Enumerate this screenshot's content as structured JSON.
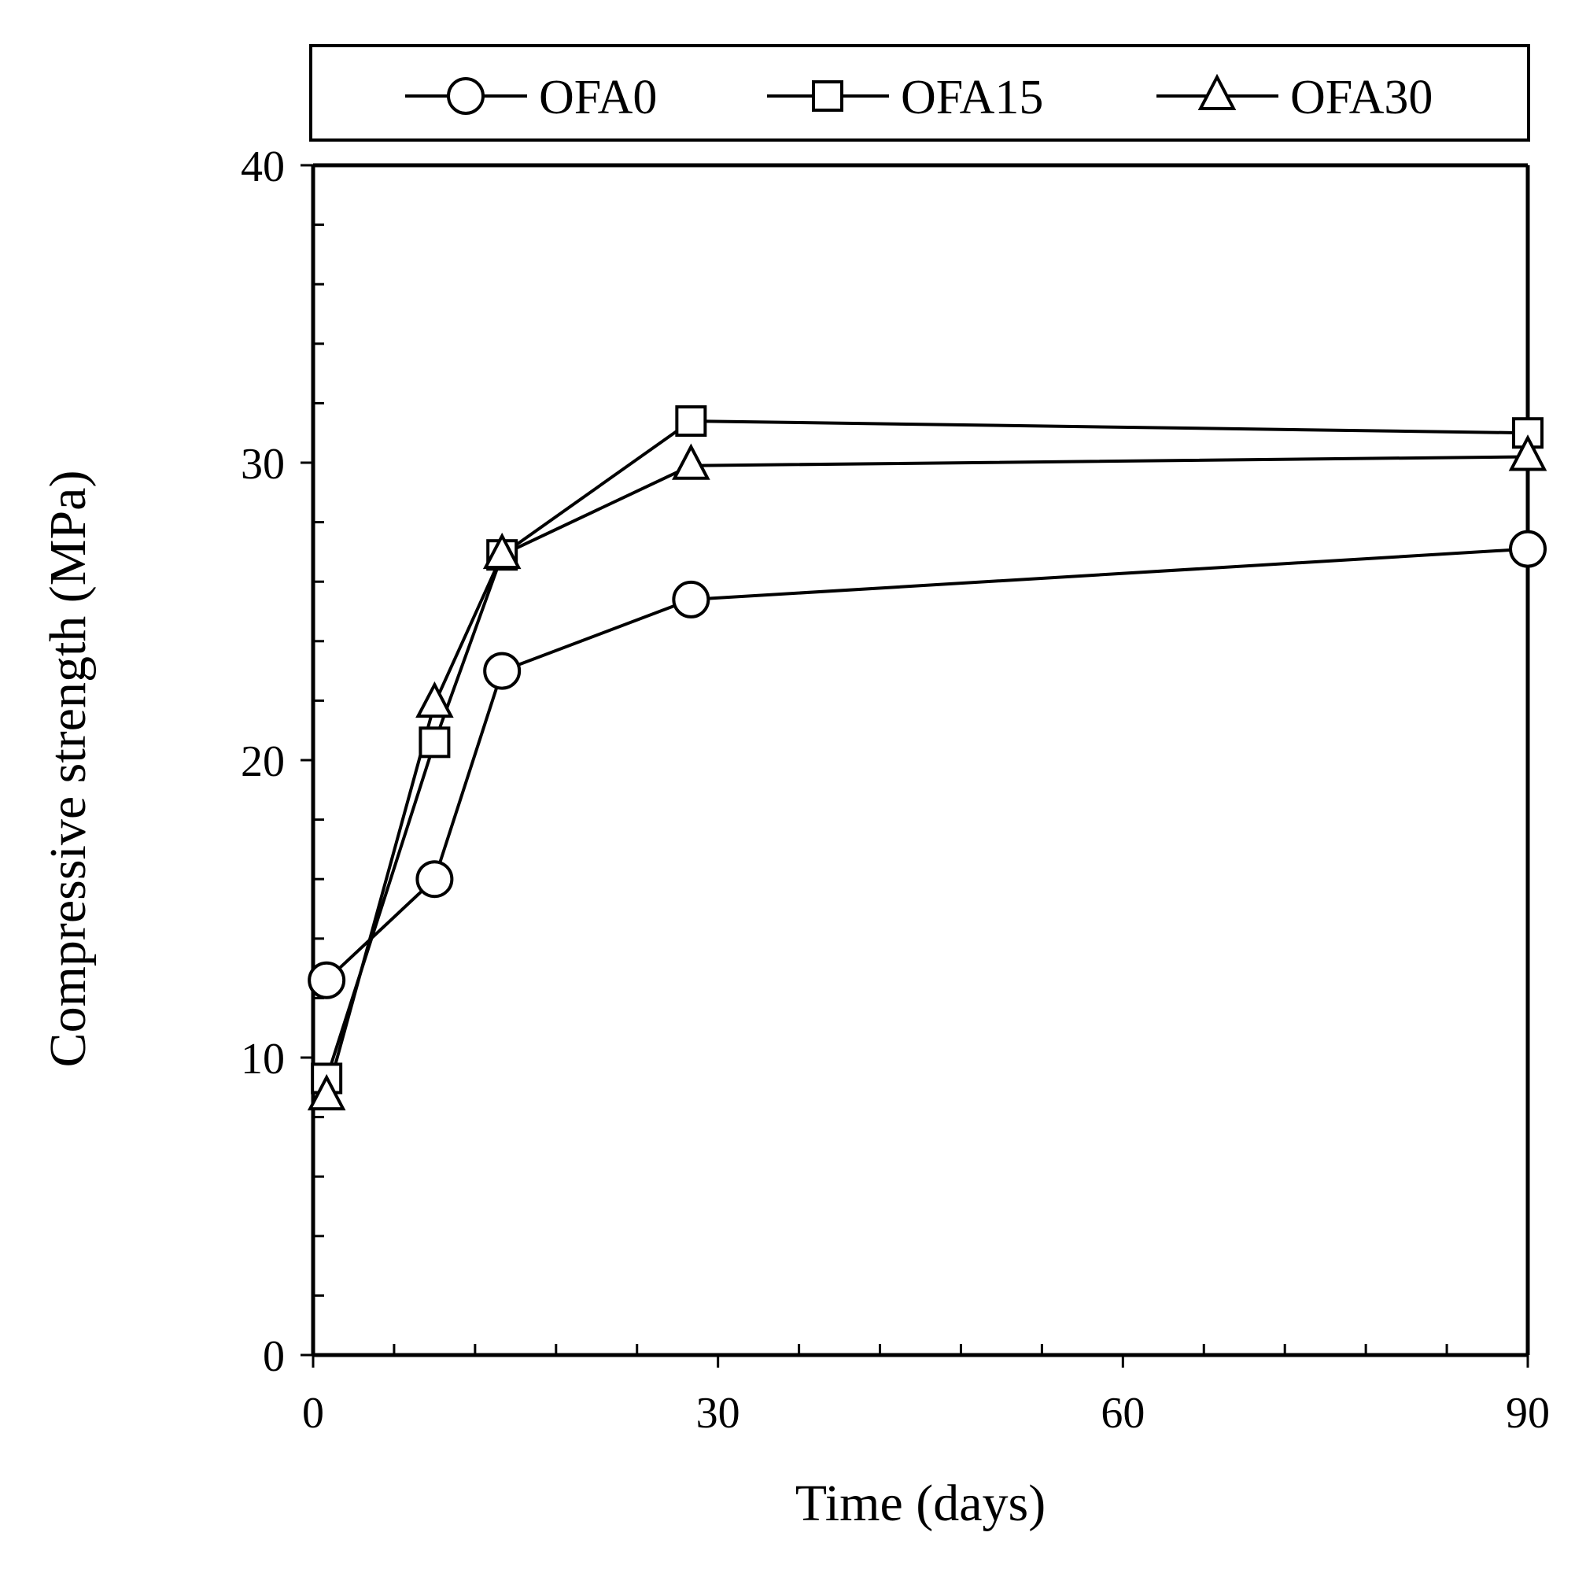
{
  "chart_data": {
    "type": "line",
    "title": "",
    "xlabel": "Time (days)",
    "ylabel": "Compressive strength (MPa)",
    "xlim": [
      0,
      90
    ],
    "ylim": [
      0,
      40
    ],
    "x_ticks": [
      0,
      30,
      60,
      90
    ],
    "x_tick_labels": [
      "0",
      "30",
      "60",
      "90"
    ],
    "y_ticks": [
      0,
      10,
      20,
      30,
      40
    ],
    "y_tick_labels": [
      "0",
      "10",
      "20",
      "30",
      "40"
    ],
    "x_minor_step": 6,
    "y_minor_step": 2,
    "grid": false,
    "legend_position": "top-outside",
    "series": [
      {
        "name": "OFA0",
        "marker": "circle",
        "x": [
          1,
          9,
          14,
          28,
          90
        ],
        "y": [
          12.6,
          16.0,
          23.0,
          25.4,
          27.1
        ]
      },
      {
        "name": "OFA15",
        "marker": "square",
        "x": [
          1,
          9,
          14,
          28,
          90
        ],
        "y": [
          9.3,
          20.6,
          26.9,
          31.4,
          31.0
        ]
      },
      {
        "name": "OFA30",
        "marker": "triangle",
        "x": [
          1,
          9,
          14,
          28,
          90
        ],
        "y": [
          8.7,
          21.9,
          26.9,
          29.9,
          30.2
        ]
      }
    ]
  }
}
